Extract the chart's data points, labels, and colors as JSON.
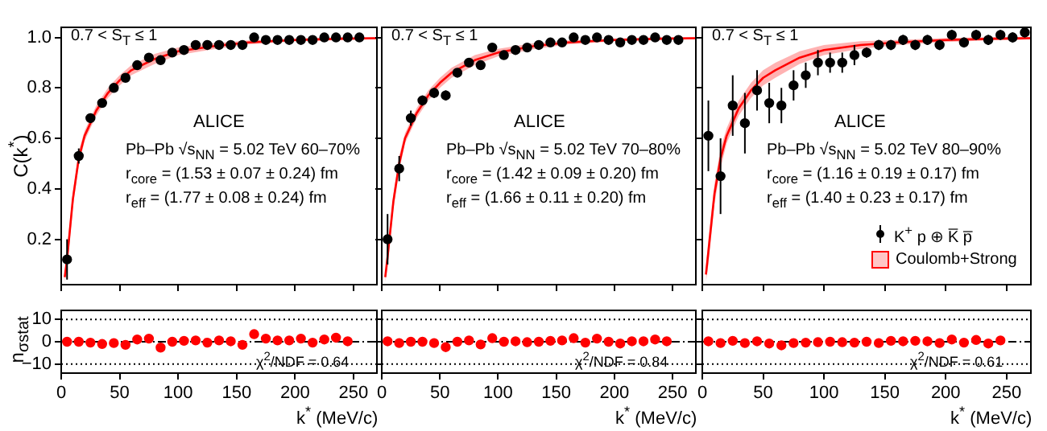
{
  "chart_data": [
    {
      "type": "scatter",
      "ylabel": "C(k$^{*}$)",
      "xlim": [
        0,
        270
      ],
      "xticks": [
        {
          "value": 0,
          "label": null
        },
        {
          "value": 50,
          "label": null
        },
        {
          "value": 100,
          "label": null
        },
        {
          "value": 150,
          "label": null
        },
        {
          "value": 200,
          "label": null
        },
        {
          "value": 250,
          "label": null
        }
      ],
      "ylim": [
        0.02,
        1.04
      ],
      "yticks": [
        {
          "value": 0.2,
          "label": "0.2"
        },
        {
          "value": 0.4,
          "label": "0.4"
        },
        {
          "value": 0.6,
          "label": "0.6"
        },
        {
          "value": 0.8,
          "label": "0.8"
        },
        {
          "value": 1,
          "label": "1.0"
        }
      ],
      "tick_labels": "y",
      "annotations": [
        "0.7 < S$_{T}$ ≤ 1",
        "ALICE",
        "Pb–Pb √s$_{NN}$ = 5.02 TeV 60–70%",
        "r$_{core}$ = (1.53 ± 0.07 ± 0.24) fm",
        "r$_{eff}$ = (1.77 ± 0.08 ± 0.24) fm"
      ],
      "series": [
        {
          "type": "scatter",
          "marker": "circle",
          "color": "#000000",
          "x": [
            5,
            15,
            25,
            35,
            45,
            55,
            65,
            75,
            85,
            95,
            105,
            115,
            125,
            135,
            145,
            155,
            165,
            175,
            185,
            195,
            205,
            215,
            225,
            235,
            245,
            255
          ],
          "values": [
            0.12,
            0.53,
            0.68,
            0.74,
            0.8,
            0.84,
            0.89,
            0.92,
            0.91,
            0.94,
            0.95,
            0.97,
            0.97,
            0.97,
            0.97,
            0.97,
            1.0,
            0.99,
            0.99,
            0.99,
            0.99,
            0.99,
            1.0,
            1.0,
            1.0,
            1.0
          ],
          "errors": [
            0.08,
            0.03,
            0.015,
            0.01,
            0.01,
            0.01,
            0.01,
            0.01,
            0.01,
            0.01,
            0.01,
            0.01,
            0.01,
            0.01,
            0.01,
            0.01,
            0.01,
            0.01,
            0.01,
            0.01,
            0.01,
            0.01,
            0.01,
            0.01,
            0.01,
            0.01
          ]
        },
        {
          "type": "line",
          "color": "#ff0000",
          "x": [
            3,
            5,
            10,
            15,
            20,
            30,
            40,
            50,
            60,
            80,
            100,
            130,
            160,
            200,
            240,
            270
          ],
          "values": [
            0.05,
            0.12,
            0.36,
            0.52,
            0.61,
            0.71,
            0.78,
            0.83,
            0.87,
            0.915,
            0.945,
            0.965,
            0.98,
            0.99,
            0.995,
            0.997
          ],
          "lower": [
            0.03,
            0.08,
            0.33,
            0.49,
            0.59,
            0.69,
            0.76,
            0.81,
            0.85,
            0.895,
            0.93,
            0.953,
            0.972,
            0.984,
            0.99,
            0.993
          ],
          "upper": [
            0.07,
            0.16,
            0.39,
            0.55,
            0.63,
            0.73,
            0.8,
            0.85,
            0.89,
            0.935,
            0.96,
            0.977,
            0.988,
            0.996,
            1.0,
            1.001
          ]
        }
      ]
    },
    {
      "type": "scatter",
      "xlim": [
        0,
        270
      ],
      "xticks": [
        {
          "value": 0,
          "label": null
        },
        {
          "value": 50,
          "label": null
        },
        {
          "value": 100,
          "label": null
        },
        {
          "value": 150,
          "label": null
        },
        {
          "value": 200,
          "label": null
        },
        {
          "value": 250,
          "label": null
        }
      ],
      "ylim": [
        0.02,
        1.04
      ],
      "yticks": [
        {
          "value": 0.2,
          "label": null
        },
        {
          "value": 0.4,
          "label": null
        },
        {
          "value": 0.6,
          "label": null
        },
        {
          "value": 0.8,
          "label": null
        },
        {
          "value": 1,
          "label": null
        }
      ],
      "tick_labels": false,
      "annotations": [
        "0.7 < S$_{T}$ ≤ 1",
        "ALICE",
        "Pb–Pb √s$_{NN}$ = 5.02 TeV 70–80%",
        "r$_{core}$ = (1.42 ± 0.09 ± 0.20) fm",
        "r$_{eff}$ = (1.66 ± 0.11 ± 0.20) fm"
      ],
      "series": [
        {
          "type": "scatter",
          "marker": "circle",
          "color": "#000000",
          "x": [
            5,
            15,
            25,
            35,
            45,
            55,
            65,
            75,
            85,
            95,
            105,
            115,
            125,
            135,
            145,
            155,
            165,
            175,
            185,
            195,
            205,
            215,
            225,
            235,
            245,
            255
          ],
          "values": [
            0.2,
            0.48,
            0.68,
            0.75,
            0.78,
            0.77,
            0.86,
            0.9,
            0.89,
            0.96,
            0.93,
            0.95,
            0.96,
            0.97,
            0.98,
            0.98,
            1.0,
            0.99,
            1.0,
            0.99,
            0.98,
            0.99,
            0.99,
            1.0,
            0.99,
            0.99
          ],
          "errors": [
            0.1,
            0.05,
            0.03,
            0.02,
            0.02,
            0.02,
            0.015,
            0.015,
            0.015,
            0.015,
            0.015,
            0.015,
            0.015,
            0.015,
            0.015,
            0.015,
            0.015,
            0.015,
            0.015,
            0.015,
            0.015,
            0.015,
            0.015,
            0.015,
            0.015,
            0.015
          ]
        },
        {
          "type": "line",
          "color": "#ff0000",
          "x": [
            3,
            5,
            10,
            15,
            20,
            30,
            40,
            50,
            60,
            80,
            100,
            130,
            160,
            200,
            240,
            270
          ],
          "values": [
            0.05,
            0.13,
            0.35,
            0.5,
            0.6,
            0.7,
            0.77,
            0.82,
            0.86,
            0.91,
            0.94,
            0.965,
            0.98,
            0.99,
            0.995,
            0.997
          ],
          "lower": [
            0.03,
            0.09,
            0.32,
            0.47,
            0.58,
            0.68,
            0.75,
            0.8,
            0.84,
            0.89,
            0.925,
            0.953,
            0.972,
            0.984,
            0.99,
            0.993
          ],
          "upper": [
            0.07,
            0.17,
            0.38,
            0.53,
            0.62,
            0.72,
            0.79,
            0.84,
            0.88,
            0.93,
            0.955,
            0.977,
            0.988,
            0.996,
            1.0,
            1.001
          ]
        }
      ]
    },
    {
      "type": "scatter",
      "xlim": [
        0,
        270
      ],
      "xticks": [
        {
          "value": 0,
          "label": null
        },
        {
          "value": 50,
          "label": null
        },
        {
          "value": 100,
          "label": null
        },
        {
          "value": 150,
          "label": null
        },
        {
          "value": 200,
          "label": null
        },
        {
          "value": 250,
          "label": null
        }
      ],
      "ylim": [
        0.02,
        1.04
      ],
      "yticks": [
        {
          "value": 0.2,
          "label": null
        },
        {
          "value": 0.4,
          "label": null
        },
        {
          "value": 0.6,
          "label": null
        },
        {
          "value": 0.8,
          "label": null
        },
        {
          "value": 1,
          "label": null
        }
      ],
      "tick_labels": false,
      "legend": "bottom right",
      "annotations": [
        "0.7 < S$_{T}$ ≤ 1",
        "ALICE",
        "Pb–Pb √s$_{NN}$ = 5.02 TeV 80–90%",
        "r$_{core}$ = (1.16 ± 0.19 ± 0.17) fm",
        "r$_{eff}$ = (1.40 ± 0.23 ± 0.17) fm"
      ],
      "series": [
        {
          "type": "scatter",
          "marker": "circle",
          "name": "K$^{+}$ p ⊕ K̅ p̅",
          "color": "#000000",
          "x": [
            5,
            15,
            25,
            35,
            45,
            55,
            65,
            75,
            85,
            95,
            105,
            115,
            125,
            135,
            145,
            155,
            165,
            175,
            185,
            195,
            205,
            215,
            225,
            235,
            245,
            255,
            265
          ],
          "values": [
            0.61,
            0.45,
            0.73,
            0.66,
            0.79,
            0.74,
            0.73,
            0.81,
            0.85,
            0.9,
            0.9,
            0.9,
            0.93,
            0.94,
            0.97,
            0.97,
            0.99,
            0.97,
            0.99,
            0.97,
            1.01,
            0.98,
            1.01,
            0.99,
            1.01,
            1.0,
            1.02
          ],
          "errors": [
            0.14,
            0.15,
            0.12,
            0.12,
            0.08,
            0.08,
            0.07,
            0.06,
            0.05,
            0.05,
            0.04,
            0.04,
            0.04,
            0.02,
            0.02,
            0.02,
            0.02,
            0.02,
            0.02,
            0.02,
            0.02,
            0.02,
            0.02,
            0.02,
            0.02,
            0.02,
            0.02
          ]
        },
        {
          "type": "line",
          "name": "Coulomb+Strong",
          "color": "#ff0000",
          "x": [
            3,
            5,
            10,
            15,
            20,
            30,
            40,
            50,
            60,
            80,
            100,
            130,
            160,
            200,
            240,
            270
          ],
          "values": [
            0.06,
            0.15,
            0.38,
            0.52,
            0.61,
            0.72,
            0.79,
            0.84,
            0.87,
            0.92,
            0.95,
            0.97,
            0.98,
            0.99,
            0.995,
            0.997
          ],
          "lower": [
            0.03,
            0.1,
            0.34,
            0.48,
            0.58,
            0.69,
            0.76,
            0.81,
            0.84,
            0.895,
            0.93,
            0.955,
            0.97,
            0.982,
            0.989,
            0.992
          ],
          "upper": [
            0.09,
            0.2,
            0.42,
            0.56,
            0.64,
            0.75,
            0.82,
            0.87,
            0.9,
            0.945,
            0.97,
            0.985,
            0.99,
            0.998,
            1.001,
            1.002
          ]
        }
      ]
    },
    {
      "type": "scatter",
      "ylabel": "n$_{σstat}$",
      "xlabel": "k$^{*}$ (MeV/c)",
      "xlim": [
        0,
        270
      ],
      "xticks": [
        0,
        50,
        100,
        150,
        200,
        250
      ],
      "ylim": [
        -14,
        14
      ],
      "yticks": [
        {
          "value": -10,
          "label": "−10"
        },
        0,
        10
      ],
      "marker": "circle",
      "annotations": [
        "χ$^{2}$/NDF = 0.64"
      ],
      "ref_lines": [
        {
          "axis": "y",
          "value": 10,
          "line_style": "dotted",
          "color": "#000000"
        },
        {
          "axis": "y",
          "value": 0,
          "line_style": "dashed",
          "color": "#000000"
        },
        {
          "axis": "y",
          "value": -10,
          "line_style": "dotted",
          "color": "#000000"
        }
      ],
      "series": [
        {
          "type": "scatter",
          "color": "#ff0000",
          "x": [
            5,
            15,
            25,
            35,
            45,
            55,
            65,
            75,
            85,
            95,
            105,
            115,
            125,
            135,
            145,
            155,
            165,
            175,
            185,
            195,
            205,
            215,
            225,
            235,
            245
          ],
          "values": [
            0,
            0,
            -0.4,
            -1,
            -0.6,
            -1.4,
            1,
            1.4,
            -2.6,
            0,
            0.4,
            0.6,
            -0.4,
            0.6,
            0.2,
            -1.4,
            3.4,
            1.4,
            0.6,
            0.6,
            1.4,
            -0.4,
            1,
            1.8,
            0.2
          ]
        }
      ]
    },
    {
      "type": "scatter",
      "xlabel": "k$^{*}$ (MeV/c)",
      "xlim": [
        0,
        270
      ],
      "xticks": [
        0,
        50,
        100,
        150,
        200,
        250
      ],
      "ylim": [
        -14,
        14
      ],
      "yticks": [
        {
          "value": -10,
          "label": null
        },
        {
          "value": 0,
          "label": null
        },
        {
          "value": 10,
          "label": null
        }
      ],
      "tick_labels": "x",
      "marker": "circle",
      "annotations": [
        "χ$^{2}$/NDF = 0.84"
      ],
      "ref_lines": [
        {
          "axis": "y",
          "value": 10,
          "line_style": "dotted",
          "color": "#000000"
        },
        {
          "axis": "y",
          "value": 0,
          "line_style": "dashed",
          "color": "#000000"
        },
        {
          "axis": "y",
          "value": -10,
          "line_style": "dotted",
          "color": "#000000"
        }
      ],
      "series": [
        {
          "type": "scatter",
          "color": "#ff0000",
          "x": [
            5,
            15,
            25,
            35,
            45,
            55,
            65,
            75,
            85,
            95,
            105,
            115,
            125,
            135,
            145,
            155,
            165,
            175,
            185,
            195,
            205,
            215,
            225,
            235,
            245
          ],
          "values": [
            0.2,
            -0.6,
            0,
            0,
            -0.6,
            -2.4,
            0,
            0.6,
            -1.2,
            1.6,
            0,
            0.2,
            -0.2,
            0,
            0.4,
            0.6,
            1.6,
            -0.4,
            1.4,
            0,
            -0.8,
            0.2,
            0.2,
            1,
            0.2
          ]
        }
      ]
    },
    {
      "type": "scatter",
      "xlabel": "k$^{*}$ (MeV/c)",
      "xlim": [
        0,
        270
      ],
      "xticks": [
        0,
        50,
        100,
        150,
        200,
        250
      ],
      "ylim": [
        -14,
        14
      ],
      "yticks": [
        {
          "value": -10,
          "label": null
        },
        {
          "value": 0,
          "label": null
        },
        {
          "value": 10,
          "label": null
        }
      ],
      "tick_labels": "x",
      "marker": "circle",
      "annotations": [
        "χ$^{2}$/NDF = 0.61"
      ],
      "ref_lines": [
        {
          "axis": "y",
          "value": 10,
          "line_style": "dotted",
          "color": "#000000"
        },
        {
          "axis": "y",
          "value": 0,
          "line_style": "dashed",
          "color": "#000000"
        },
        {
          "axis": "y",
          "value": -10,
          "line_style": "dotted",
          "color": "#000000"
        }
      ],
      "series": [
        {
          "type": "scatter",
          "color": "#ff0000",
          "x": [
            5,
            15,
            25,
            35,
            45,
            55,
            65,
            75,
            85,
            95,
            105,
            115,
            125,
            135,
            145,
            155,
            165,
            175,
            185,
            195,
            205,
            215,
            225,
            235,
            245
          ],
          "values": [
            0.2,
            -0.6,
            0.4,
            -0.6,
            0.2,
            -0.8,
            -1.6,
            -0.6,
            -0.4,
            -0.2,
            0,
            -0.2,
            -0.4,
            0,
            -0.6,
            0.4,
            0.2,
            0.4,
            0.2,
            -0.6,
            1,
            -0.4,
            0.8,
            -0.8,
            0.6
          ]
        }
      ]
    }
  ]
}
